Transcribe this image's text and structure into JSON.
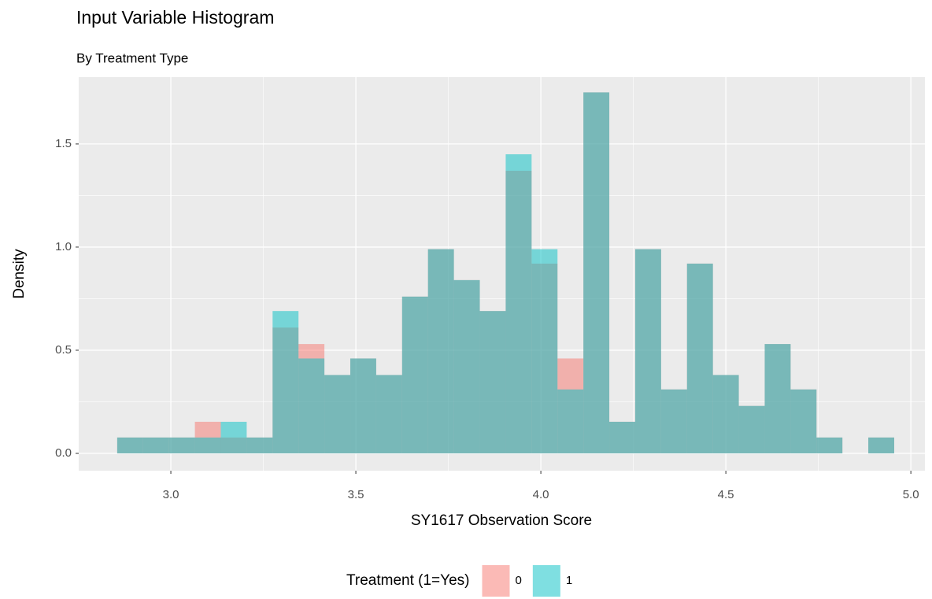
{
  "chart_data": {
    "type": "histogram",
    "title": "Input Variable Histogram",
    "subtitle": "By Treatment Type",
    "x_label": "SY1617 Observation Score",
    "y_label": "Density",
    "legend_title": "Treatment (1=Yes)",
    "legend_position": "bottom",
    "grid": true,
    "bins": [
      2.855,
      2.925,
      2.995,
      3.065,
      3.135,
      3.205,
      3.275,
      3.345,
      3.415,
      3.485,
      3.555,
      3.625,
      3.695,
      3.765,
      3.835,
      3.905,
      3.975,
      4.045,
      4.115,
      4.185,
      4.255,
      4.325,
      4.395,
      4.465,
      4.535,
      4.605,
      4.675,
      4.745,
      4.815,
      4.885,
      4.955
    ],
    "series": [
      {
        "name": "0",
        "color": "#F8766D",
        "values": [
          0.077,
          0.077,
          0.077,
          0.153,
          0.077,
          0.077,
          0.61,
          0.53,
          0.38,
          0.46,
          0.38,
          0.76,
          0.99,
          0.84,
          0.69,
          1.37,
          0.92,
          0.46,
          1.75,
          0.153,
          0.99,
          0.31,
          0.92,
          0.38,
          0.23,
          0.53,
          0.31,
          0.077,
          0,
          0.077
        ]
      },
      {
        "name": "1",
        "color": "#00BFC4",
        "values": [
          0.077,
          0.077,
          0.077,
          0.077,
          0.153,
          0.077,
          0.69,
          0.46,
          0.38,
          0.46,
          0.38,
          0.76,
          0.99,
          0.84,
          0.69,
          1.45,
          0.99,
          0.31,
          1.75,
          0.153,
          0.99,
          0.31,
          0.92,
          0.38,
          0.23,
          0.53,
          0.31,
          0.077,
          0,
          0.077
        ]
      }
    ],
    "xlim": [
      2.751,
      5.038
    ],
    "ylim": [
      -0.084,
      1.824
    ],
    "xticks": [
      {
        "value": 3,
        "label": "3.0"
      },
      {
        "value": 3.5,
        "label": "3.5"
      },
      {
        "value": 4,
        "label": "4.0"
      },
      {
        "value": 4.5,
        "label": "4.5"
      },
      {
        "value": 5,
        "label": "5.0"
      }
    ],
    "yticks": [
      {
        "value": 0,
        "label": "0.0"
      },
      {
        "value": 0.5,
        "label": "0.5"
      },
      {
        "value": 1,
        "label": "1.0"
      },
      {
        "value": 1.5,
        "label": "1.5"
      }
    ]
  }
}
